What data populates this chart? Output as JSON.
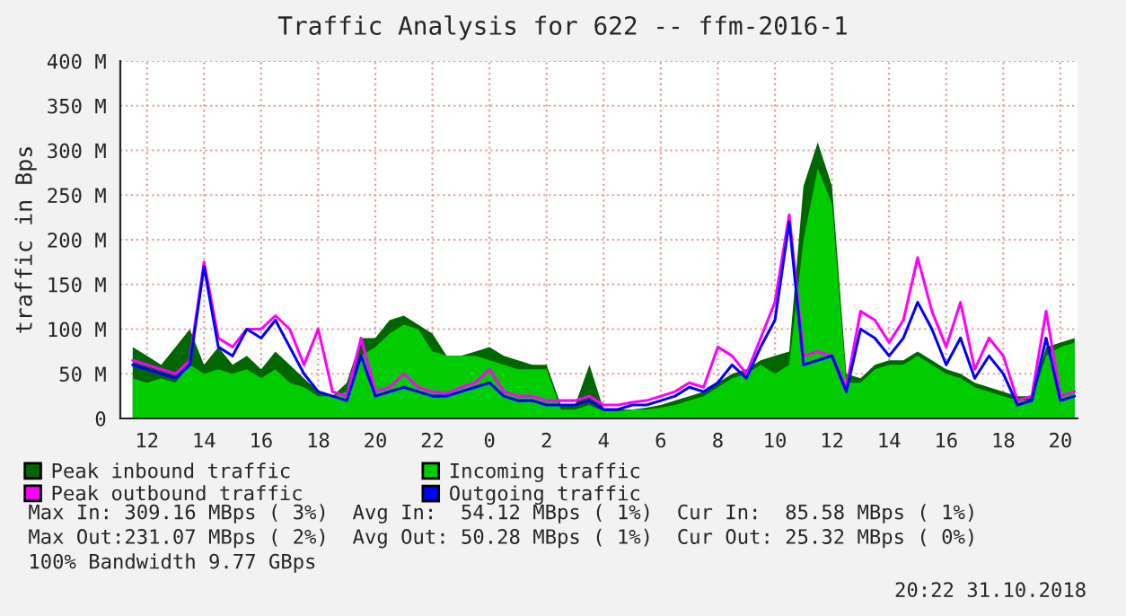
{
  "chart_data": {
    "type": "area",
    "title": "Traffic Analysis for 622 -- ffm-2016-1",
    "ylabel": "traffic in Bps",
    "x": [
      "2018-10-30T11:30",
      "2018-10-30T12:00",
      "2018-10-30T12:30",
      "2018-10-30T13:00",
      "2018-10-30T13:30",
      "2018-10-30T14:00",
      "2018-10-30T14:30",
      "2018-10-30T15:00",
      "2018-10-30T15:30",
      "2018-10-30T16:00",
      "2018-10-30T16:30",
      "2018-10-30T17:00",
      "2018-10-30T17:30",
      "2018-10-30T18:00",
      "2018-10-30T18:30",
      "2018-10-30T19:00",
      "2018-10-30T19:30",
      "2018-10-30T20:00",
      "2018-10-30T20:30",
      "2018-10-30T21:00",
      "2018-10-30T21:30",
      "2018-10-30T22:00",
      "2018-10-30T22:30",
      "2018-10-30T23:00",
      "2018-10-30T23:30",
      "2018-10-31T00:00",
      "2018-10-31T00:30",
      "2018-10-31T01:00",
      "2018-10-31T01:30",
      "2018-10-31T02:00",
      "2018-10-31T02:30",
      "2018-10-31T03:00",
      "2018-10-31T03:30",
      "2018-10-31T04:00",
      "2018-10-31T04:30",
      "2018-10-31T05:00",
      "2018-10-31T05:30",
      "2018-10-31T06:00",
      "2018-10-31T06:30",
      "2018-10-31T07:00",
      "2018-10-31T07:30",
      "2018-10-31T08:00",
      "2018-10-31T08:30",
      "2018-10-31T09:00",
      "2018-10-31T09:30",
      "2018-10-31T10:00",
      "2018-10-31T10:30",
      "2018-10-31T11:00",
      "2018-10-31T11:30",
      "2018-10-31T12:00",
      "2018-10-31T12:30",
      "2018-10-31T13:00",
      "2018-10-31T13:30",
      "2018-10-31T14:00",
      "2018-10-31T14:30",
      "2018-10-31T15:00",
      "2018-10-31T15:30",
      "2018-10-31T16:00",
      "2018-10-31T16:30",
      "2018-10-31T17:00",
      "2018-10-31T17:30",
      "2018-10-31T18:00",
      "2018-10-31T18:30",
      "2018-10-31T19:00",
      "2018-10-31T19:30",
      "2018-10-31T20:00",
      "2018-10-31T20:30"
    ],
    "series": [
      {
        "name": "Peak inbound traffic",
        "color": "#006600",
        "values": [
          80,
          70,
          60,
          80,
          100,
          60,
          80,
          60,
          70,
          55,
          75,
          60,
          45,
          30,
          25,
          40,
          90,
          90,
          110,
          115,
          105,
          95,
          70,
          70,
          75,
          80,
          70,
          65,
          60,
          60,
          15,
          15,
          60,
          10,
          10,
          10,
          12,
          15,
          20,
          25,
          30,
          40,
          50,
          55,
          65,
          70,
          75,
          260,
          309,
          260,
          50,
          45,
          60,
          65,
          65,
          75,
          65,
          55,
          50,
          40,
          35,
          30,
          25,
          25,
          80,
          85,
          90
        ]
      },
      {
        "name": "Incoming traffic",
        "color": "#00cc00",
        "values": [
          45,
          40,
          45,
          40,
          60,
          50,
          55,
          50,
          55,
          45,
          55,
          40,
          35,
          25,
          25,
          30,
          70,
          80,
          95,
          105,
          100,
          75,
          70,
          70,
          70,
          65,
          60,
          55,
          55,
          55,
          10,
          10,
          15,
          8,
          8,
          10,
          10,
          12,
          15,
          20,
          25,
          35,
          45,
          50,
          60,
          50,
          60,
          200,
          280,
          240,
          40,
          40,
          55,
          60,
          60,
          70,
          60,
          50,
          45,
          35,
          30,
          25,
          20,
          20,
          70,
          80,
          85
        ]
      },
      {
        "name": "Peak outbound traffic",
        "type": "line",
        "color": "#ff00ff",
        "values": [
          65,
          60,
          55,
          50,
          65,
          175,
          90,
          80,
          100,
          100,
          115,
          100,
          60,
          100,
          30,
          25,
          90,
          30,
          35,
          50,
          35,
          30,
          28,
          35,
          40,
          55,
          30,
          25,
          25,
          20,
          20,
          20,
          25,
          15,
          15,
          18,
          20,
          25,
          30,
          40,
          35,
          80,
          70,
          50,
          90,
          130,
          228,
          70,
          75,
          70,
          35,
          120,
          110,
          85,
          110,
          180,
          120,
          80,
          130,
          55,
          90,
          70,
          20,
          25,
          120,
          25,
          30
        ]
      },
      {
        "name": "Outgoing traffic",
        "type": "line",
        "color": "#0000ff",
        "values": [
          60,
          55,
          50,
          45,
          60,
          170,
          80,
          70,
          100,
          90,
          110,
          80,
          50,
          30,
          25,
          20,
          70,
          25,
          30,
          35,
          30,
          25,
          25,
          30,
          35,
          40,
          25,
          20,
          20,
          15,
          15,
          15,
          20,
          10,
          10,
          15,
          15,
          20,
          25,
          35,
          30,
          40,
          60,
          45,
          80,
          110,
          220,
          60,
          65,
          70,
          30,
          100,
          90,
          70,
          90,
          130,
          100,
          60,
          90,
          45,
          70,
          50,
          15,
          20,
          90,
          20,
          25
        ]
      }
    ],
    "xlim": [
      "2018-10-30T11:04",
      "2018-10-31T20:36"
    ],
    "xticks": [
      {
        "value": "2018-10-30T12:00",
        "label": "12"
      },
      {
        "value": "2018-10-30T14:00",
        "label": "14"
      },
      {
        "value": "2018-10-30T16:00",
        "label": "16"
      },
      {
        "value": "2018-10-30T18:00",
        "label": "18"
      },
      {
        "value": "2018-10-30T20:00",
        "label": "20"
      },
      {
        "value": "2018-10-30T22:00",
        "label": "22"
      },
      {
        "value": "2018-10-31T00:00",
        "label": "0"
      },
      {
        "value": "2018-10-31T02:00",
        "label": "2"
      },
      {
        "value": "2018-10-31T04:00",
        "label": "4"
      },
      {
        "value": "2018-10-31T06:00",
        "label": "6"
      },
      {
        "value": "2018-10-31T08:00",
        "label": "8"
      },
      {
        "value": "2018-10-31T10:00",
        "label": "10"
      },
      {
        "value": "2018-10-31T12:00",
        "label": "12"
      },
      {
        "value": "2018-10-31T14:00",
        "label": "14"
      },
      {
        "value": "2018-10-31T16:00",
        "label": "16"
      },
      {
        "value": "2018-10-31T18:00",
        "label": "18"
      },
      {
        "value": "2018-10-31T20:00",
        "label": "20"
      }
    ],
    "ylim": [
      0,
      400
    ],
    "yticks": [
      0,
      {
        "value": 50,
        "label": "50 M"
      },
      {
        "value": 100,
        "label": "100 M"
      },
      {
        "value": 150,
        "label": "150 M"
      },
      {
        "value": 200,
        "label": "200 M"
      },
      {
        "value": 250,
        "label": "250 M"
      },
      {
        "value": 300,
        "label": "300 M"
      },
      {
        "value": 350,
        "label": "350 M"
      },
      {
        "value": 400,
        "label": "400 M"
      }
    ],
    "grid": true,
    "legend": "bottom",
    "annotations": [
      "Max In: 309.16 MBps ( 3%)  Avg In:  54.12 MBps ( 1%)  Cur In:  85.58 MBps ( 1%)",
      "Max Out:231.07 MBps ( 2%)  Avg Out: 50.28 MBps ( 1%)  Cur Out: 25.32 MBps ( 0%)",
      "100% Bandwidth 9.77 GBps",
      "20:22 31.10.2018"
    ]
  }
}
